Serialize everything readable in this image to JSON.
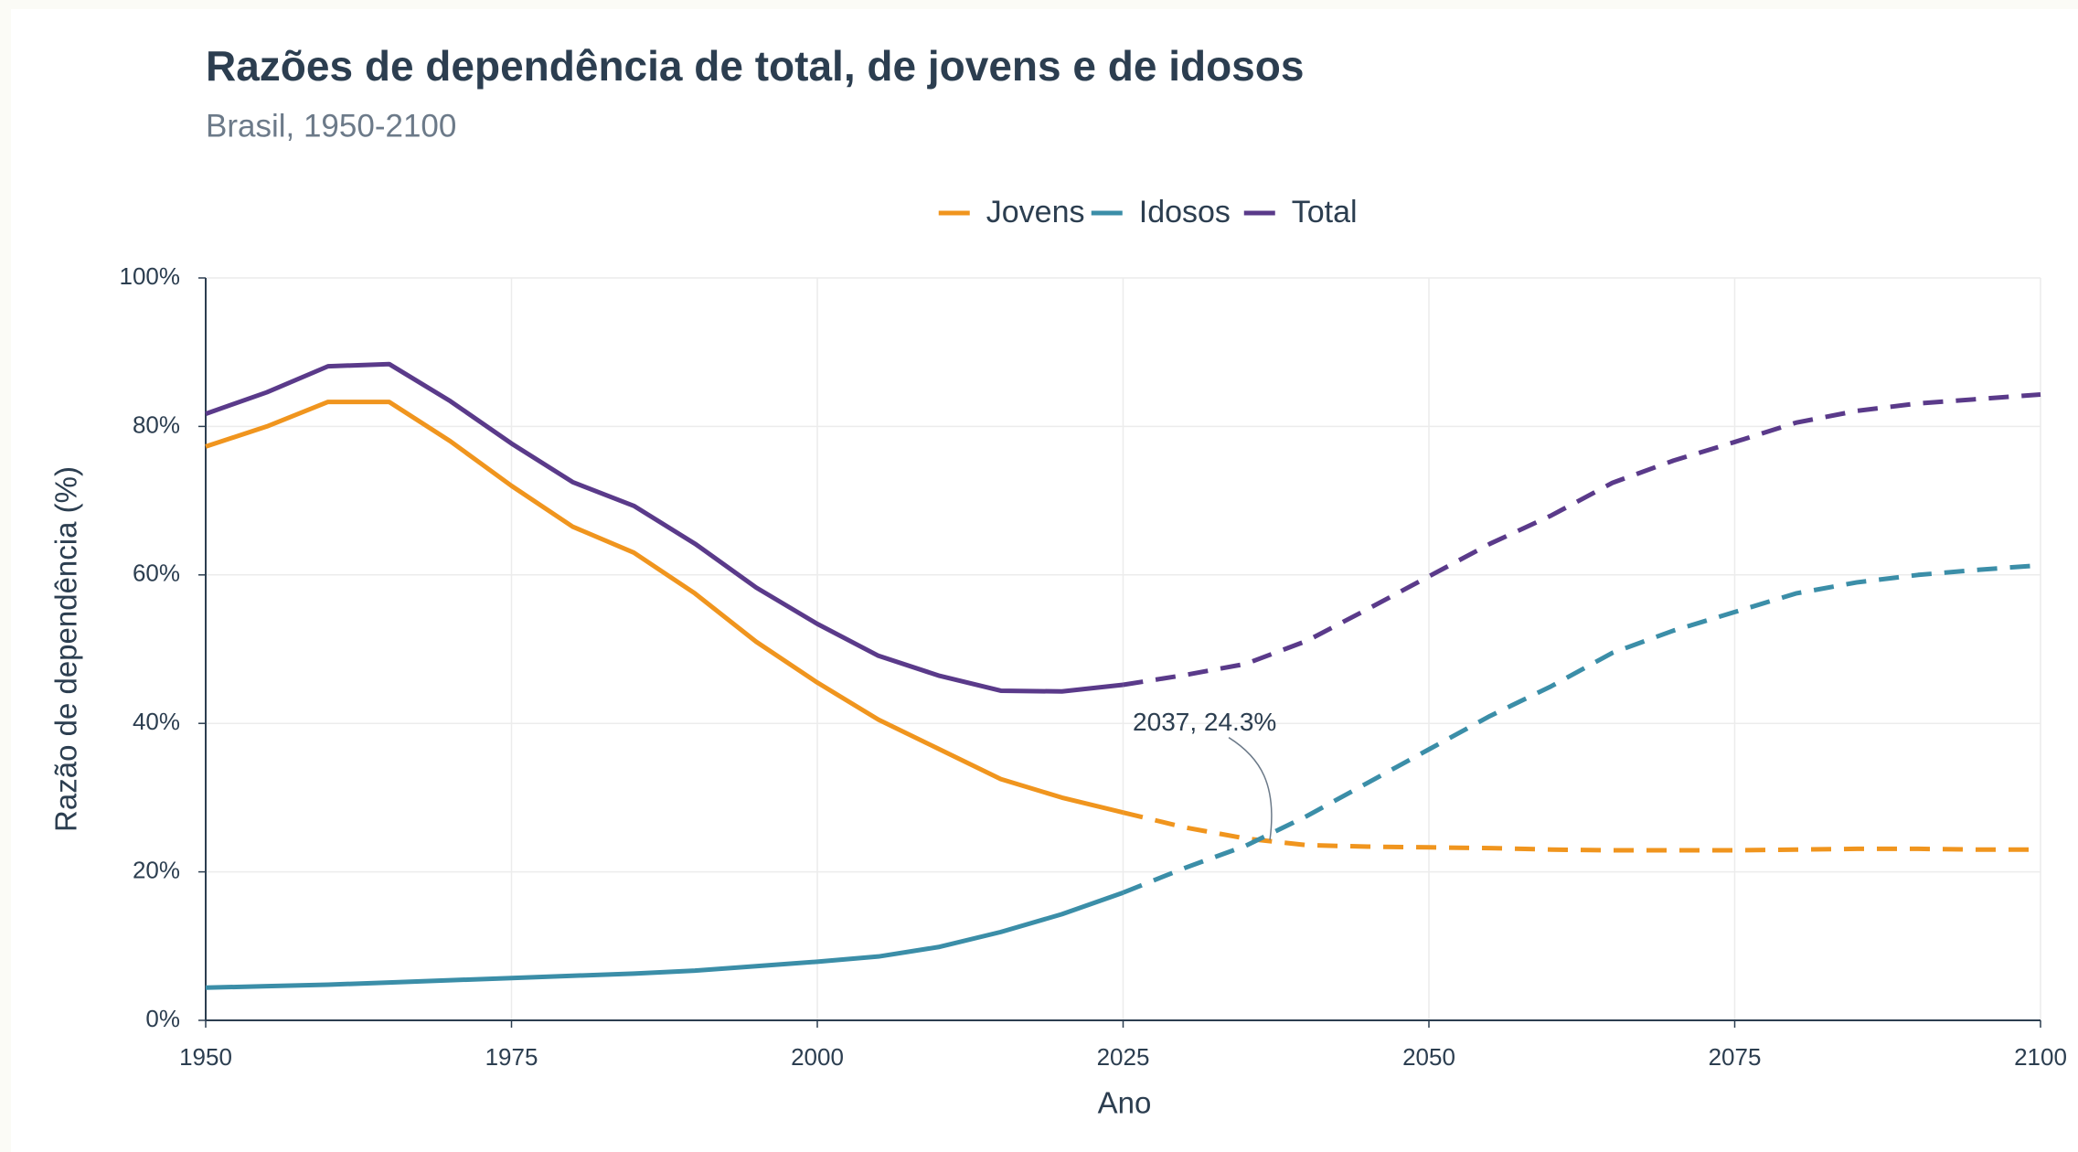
{
  "chart_data": {
    "type": "line",
    "title": "Razões de dependência de total, de jovens e de idosos",
    "subtitle": "Brasil, 1950-2100",
    "x_label": "Ano",
    "y_label": "Razão de dependência (%)",
    "x": [
      1950,
      1955,
      1960,
      1965,
      1970,
      1975,
      1980,
      1985,
      1990,
      1995,
      2000,
      2005,
      2010,
      2015,
      2020,
      2025,
      2030,
      2035,
      2040,
      2045,
      2050,
      2055,
      2060,
      2065,
      2070,
      2075,
      2080,
      2085,
      2090,
      2095,
      2100
    ],
    "projection_from": 2025,
    "series": [
      {
        "name": "Jovens",
        "color": "#f0951e",
        "values": [
          77.3,
          80,
          83.3,
          83.3,
          78,
          72,
          66.5,
          63,
          57.5,
          51,
          45.5,
          40.5,
          36.5,
          32.5,
          30,
          28,
          26,
          24.5,
          23.6,
          23.4,
          23.3,
          23.2,
          23,
          22.9,
          22.9,
          22.9,
          23,
          23.1,
          23.1,
          23,
          23
        ]
      },
      {
        "name": "Idosos",
        "color": "#3b8ea8",
        "values": [
          4.4,
          4.6,
          4.8,
          5.1,
          5.4,
          5.7,
          6.0,
          6.3,
          6.7,
          7.3,
          7.9,
          8.6,
          9.9,
          11.9,
          14.3,
          17.2,
          20.5,
          23.5,
          27.5,
          32,
          36.5,
          41,
          45,
          49.5,
          52.5,
          55,
          57.5,
          59,
          60,
          60.7,
          61.3
        ]
      },
      {
        "name": "Total",
        "color": "#5a3a8a",
        "values": [
          81.7,
          84.6,
          88.1,
          88.4,
          83.4,
          77.7,
          72.5,
          69.3,
          64.2,
          58.3,
          53.4,
          49.1,
          46.4,
          44.4,
          44.3,
          45.2,
          46.5,
          48,
          51.1,
          55.4,
          59.8,
          64.2,
          68,
          72.4,
          75.4,
          77.9,
          80.5,
          82.1,
          83.1,
          83.7,
          84.3
        ]
      }
    ],
    "annotation": {
      "text": "2037, 24.3%",
      "x": 2037,
      "y": 24.3
    },
    "xlim": [
      1950,
      2100
    ],
    "xticks": [
      1950,
      1975,
      2000,
      2025,
      2050,
      2075,
      2100
    ],
    "ylim": [
      0,
      100
    ],
    "yticks": [
      {
        "value": 0,
        "label": "0%"
      },
      {
        "value": 20,
        "label": "20%"
      },
      {
        "value": 40,
        "label": "40%"
      },
      {
        "value": 60,
        "label": "60%"
      },
      {
        "value": 80,
        "label": "80%"
      },
      {
        "value": 100,
        "label": "100%"
      }
    ],
    "grid": true
  }
}
